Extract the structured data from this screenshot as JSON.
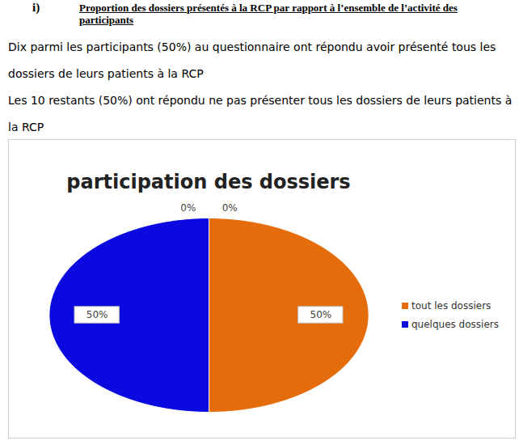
{
  "document": {
    "heading": {
      "number": "i)",
      "text": "Proportion des dossiers présentés à la RCP  par rapport à l’ensemble de l’activité des participants"
    },
    "paragraphs": [
      "Dix parmi les participants (50%) au questionnaire ont répondu avoir présenté tous les dossiers de leurs patients à la RCP",
      "Les 10 restants (50%) ont répondu ne pas présenter tous les dossiers de leurs patients à la RCP"
    ]
  },
  "chart_data": {
    "type": "pie",
    "title": "participation des dossiers",
    "categories": [
      "tout les dossiers",
      "quelques dossiers",
      null,
      null
    ],
    "values": [
      50,
      50,
      0,
      0
    ],
    "value_labels": [
      "50%",
      "50%",
      "0%",
      "0%"
    ],
    "colors": [
      "#e46c0a",
      "#0a0ae0",
      "#a5a5a5",
      "#ffc000"
    ],
    "data_labels": true,
    "legend": "right"
  }
}
